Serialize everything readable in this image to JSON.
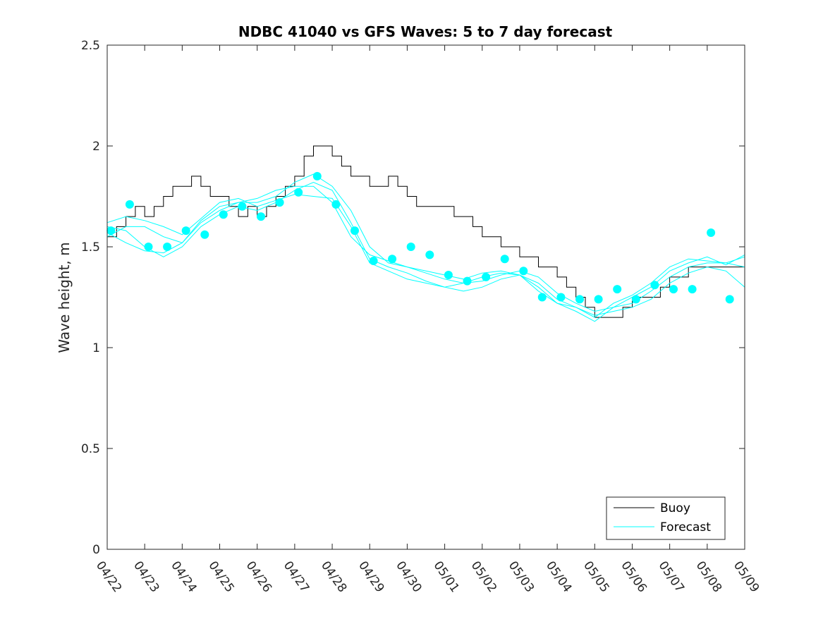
{
  "chart_data": {
    "type": "line",
    "title": "NDBC 41040 vs GFS Waves: 5 to 7 day forecast",
    "xlabel": "",
    "ylabel": "Wave height, m",
    "x_tick_labels": [
      "04/22",
      "04/23",
      "04/24",
      "04/25",
      "04/26",
      "04/27",
      "04/28",
      "04/29",
      "04/30",
      "05/01",
      "05/02",
      "05/03",
      "05/04",
      "05/05",
      "05/06",
      "05/07",
      "05/08",
      "05/09"
    ],
    "y_tick_labels": [
      "0",
      "0.5",
      "1",
      "1.5",
      "2",
      "2.5"
    ],
    "xlim_days": [
      0,
      17
    ],
    "ylim": [
      0,
      2.5
    ],
    "grid": false,
    "legend_placement": "bottom-right",
    "colors": {
      "buoy": "#000000",
      "forecast": "#00ffff",
      "axes": "#262626"
    },
    "series": [
      {
        "name": "Buoy",
        "style": "line",
        "x_days": [
          0,
          0.25,
          0.5,
          0.75,
          1.0,
          1.25,
          1.5,
          1.75,
          2.0,
          2.25,
          2.5,
          2.75,
          3.0,
          3.25,
          3.5,
          3.75,
          4.0,
          4.25,
          4.5,
          4.75,
          5.0,
          5.25,
          5.5,
          5.75,
          6.0,
          6.25,
          6.5,
          6.75,
          7.0,
          7.25,
          7.5,
          7.75,
          8.0,
          8.25,
          8.5,
          8.75,
          9.0,
          9.25,
          9.5,
          9.75,
          10.0,
          10.25,
          10.5,
          10.75,
          11.0,
          11.25,
          11.5,
          11.75,
          12.0,
          12.25,
          12.5,
          12.75,
          13.0,
          13.25,
          13.5,
          13.75,
          14.0,
          14.25,
          14.5,
          14.75,
          15.0,
          15.25,
          15.5,
          15.75,
          16.0,
          16.25,
          16.5,
          16.75,
          17.0
        ],
        "values": [
          1.55,
          1.6,
          1.65,
          1.7,
          1.65,
          1.7,
          1.75,
          1.8,
          1.8,
          1.85,
          1.8,
          1.75,
          1.75,
          1.7,
          1.65,
          1.7,
          1.65,
          1.7,
          1.75,
          1.8,
          1.85,
          1.95,
          2.0,
          2.0,
          1.95,
          1.9,
          1.85,
          1.85,
          1.8,
          1.8,
          1.85,
          1.8,
          1.75,
          1.7,
          1.7,
          1.7,
          1.7,
          1.65,
          1.65,
          1.6,
          1.55,
          1.55,
          1.5,
          1.5,
          1.45,
          1.45,
          1.4,
          1.4,
          1.35,
          1.3,
          1.25,
          1.2,
          1.15,
          1.15,
          1.15,
          1.2,
          1.25,
          1.25,
          1.25,
          1.3,
          1.35,
          1.35,
          1.4,
          1.4,
          1.4,
          1.4,
          1.4,
          1.4,
          1.4
        ]
      },
      {
        "name": "Forecast",
        "style": "markers",
        "x_days": [
          0.1,
          0.6,
          1.1,
          1.6,
          2.1,
          2.6,
          3.1,
          3.6,
          4.1,
          4.6,
          5.6,
          5.1,
          6.1,
          6.6,
          7.1,
          7.6,
          8.1,
          8.6,
          9.1,
          9.6,
          10.1,
          10.6,
          11.1,
          11.6,
          12.1,
          12.6,
          13.1,
          13.6,
          14.1,
          14.6,
          15.1,
          15.6,
          16.1,
          16.6
        ],
        "values": [
          1.58,
          1.71,
          1.5,
          1.5,
          1.58,
          1.56,
          1.66,
          1.7,
          1.65,
          1.72,
          1.85,
          1.77,
          1.71,
          1.58,
          1.43,
          1.44,
          1.5,
          1.46,
          1.36,
          1.33,
          1.35,
          1.44,
          1.38,
          1.25,
          1.25,
          1.24,
          1.24,
          1.29,
          1.24,
          1.31,
          1.29,
          1.29,
          1.57,
          1.24
        ]
      },
      {
        "style": "line",
        "x_days": [
          0,
          0.5,
          1.0,
          1.5,
          2.0,
          2.5,
          3.0,
          3.5,
          4.0,
          4.5,
          5.0,
          5.5,
          6.0,
          6.5,
          7.0,
          7.5,
          8.0,
          8.5,
          9.0,
          9.5,
          10.0,
          10.5,
          11.0,
          11.5,
          12.0,
          12.5,
          13.0,
          13.5,
          14.0,
          14.5,
          15.0,
          15.5,
          16.0,
          16.5,
          17.0
        ],
        "values": [
          1.57,
          1.52,
          1.48,
          1.47,
          1.52,
          1.63,
          1.7,
          1.72,
          1.72,
          1.75,
          1.82,
          1.86,
          1.8,
          1.68,
          1.5,
          1.42,
          1.4,
          1.37,
          1.34,
          1.32,
          1.33,
          1.36,
          1.38,
          1.35,
          1.27,
          1.22,
          1.18,
          1.2,
          1.22,
          1.28,
          1.35,
          1.4,
          1.42,
          1.42,
          1.4
        ]
      },
      {
        "style": "line",
        "x_days": [
          0,
          0.5,
          1.0,
          1.5,
          2.0,
          2.5,
          3.0,
          3.5,
          4.0,
          4.5,
          5.0,
          5.5,
          6.0,
          6.5,
          7.0,
          7.5,
          8.0,
          8.5,
          9.0,
          9.5,
          10.0,
          10.5,
          11.0,
          11.5,
          12.0,
          12.5,
          13.0,
          13.5,
          14.0,
          14.5,
          15.0,
          15.5,
          16.0,
          16.5,
          17.0
        ],
        "values": [
          1.6,
          1.58,
          1.5,
          1.45,
          1.5,
          1.6,
          1.66,
          1.7,
          1.68,
          1.72,
          1.78,
          1.82,
          1.78,
          1.62,
          1.44,
          1.4,
          1.37,
          1.33,
          1.3,
          1.28,
          1.3,
          1.34,
          1.36,
          1.32,
          1.24,
          1.2,
          1.16,
          1.18,
          1.2,
          1.24,
          1.32,
          1.37,
          1.4,
          1.38,
          1.3
        ]
      },
      {
        "style": "line",
        "x_days": [
          0,
          0.5,
          1.0,
          1.5,
          2.0,
          2.5,
          3.0,
          3.5,
          4.0,
          4.5,
          5.0,
          5.5,
          6.0,
          6.5,
          7.0,
          7.5,
          8.0,
          8.5,
          9.0,
          9.5,
          10.0,
          10.5,
          11.0,
          11.5,
          12.0,
          12.5,
          13.0,
          13.5,
          14.0,
          14.5,
          15.0,
          15.5,
          16.0,
          16.5,
          17.0
        ],
        "values": [
          1.62,
          1.65,
          1.63,
          1.6,
          1.56,
          1.64,
          1.72,
          1.74,
          1.7,
          1.73,
          1.76,
          1.75,
          1.74,
          1.6,
          1.42,
          1.38,
          1.34,
          1.32,
          1.3,
          1.32,
          1.35,
          1.37,
          1.36,
          1.3,
          1.22,
          1.18,
          1.13,
          1.2,
          1.25,
          1.3,
          1.38,
          1.42,
          1.45,
          1.41,
          1.46
        ]
      },
      {
        "style": "line",
        "x_days": [
          0,
          0.5,
          1.0,
          1.5,
          2.0,
          2.5,
          3.0,
          3.5,
          4.0,
          4.5,
          5.0,
          5.5,
          6.0,
          6.5,
          7.0,
          7.5,
          8.0,
          8.5,
          9.0,
          9.5,
          10.0,
          10.5,
          11.0,
          11.5,
          12.0,
          12.5,
          13.0,
          13.5,
          14.0,
          14.5,
          15.0,
          15.5,
          16.0,
          16.5,
          17.0
        ],
        "values": [
          1.55,
          1.6,
          1.6,
          1.55,
          1.52,
          1.62,
          1.68,
          1.72,
          1.74,
          1.78,
          1.8,
          1.8,
          1.72,
          1.55,
          1.46,
          1.43,
          1.4,
          1.38,
          1.36,
          1.34,
          1.37,
          1.38,
          1.36,
          1.28,
          1.22,
          1.2,
          1.15,
          1.22,
          1.26,
          1.32,
          1.4,
          1.44,
          1.43,
          1.42,
          1.45
        ]
      }
    ],
    "legend": [
      {
        "label": "Buoy",
        "color": "#000000"
      },
      {
        "label": "Forecast",
        "color": "#00ffff"
      }
    ]
  }
}
